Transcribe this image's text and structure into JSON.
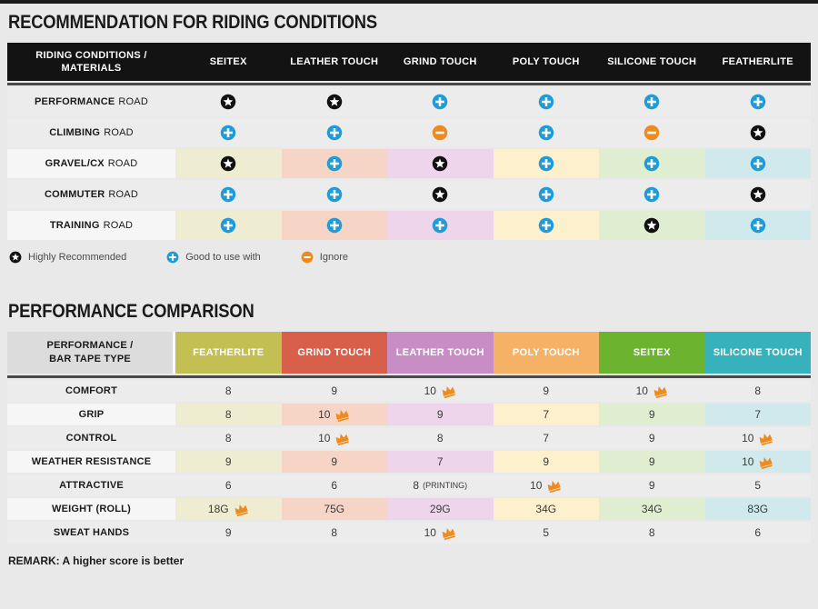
{
  "page": {
    "title_recommendation": "RECOMMENDATION FOR RIDING CONDITIONS",
    "title_comparison": "PERFORMANCE COMPARISON",
    "remark": "REMARK: A higher score is better"
  },
  "colors": {
    "header_bg": "#131313",
    "row_gray": "#ececec",
    "row_light": "#f6f6f6",
    "separator": "#4a4a4c",
    "icon_star": "#111111",
    "icon_plus": "#1f9cd8",
    "icon_minus": "#ee8b1e",
    "crown": "#ee8b1e",
    "pastel_palette": [
      "#eeedd2",
      "#f7d5c6",
      "#eed5eb",
      "#fdf0cc",
      "#dfeed1",
      "#cfe9ec"
    ]
  },
  "recommendation_table": {
    "header_label": "RIDING CONDITIONS /\nMATERIALS",
    "columns": [
      "SEITEX",
      "LEATHER TOUCH",
      "GRIND TOUCH",
      "POLY TOUCH",
      "SILICONE TOUCH",
      "FEATHERLITE"
    ],
    "rows": [
      {
        "strong": "PERFORMANCE",
        "rest": "ROAD",
        "colored": false,
        "cells": [
          "star",
          "star",
          "plus",
          "plus",
          "plus",
          "plus"
        ]
      },
      {
        "strong": "CLIMBING",
        "rest": "ROAD",
        "colored": false,
        "cells": [
          "plus",
          "plus",
          "minus",
          "plus",
          "minus",
          "star"
        ]
      },
      {
        "strong": "GRAVEL/CX",
        "rest": "ROAD",
        "colored": true,
        "cells": [
          "star",
          "plus",
          "star",
          "plus",
          "plus",
          "plus"
        ]
      },
      {
        "strong": "COMMUTER",
        "rest": "ROAD",
        "colored": false,
        "cells": [
          "plus",
          "plus",
          "star",
          "plus",
          "plus",
          "star"
        ]
      },
      {
        "strong": "TRAINING",
        "rest": "ROAD",
        "colored": true,
        "cells": [
          "plus",
          "plus",
          "plus",
          "plus",
          "star",
          "plus"
        ]
      }
    ]
  },
  "legend": [
    {
      "icon": "star",
      "label": "Highly Recommended"
    },
    {
      "icon": "plus",
      "label": "Good to use with"
    },
    {
      "icon": "minus",
      "label": "Ignore"
    }
  ],
  "comparison_table": {
    "header_label": "PERFORMANCE /\nBAR TAPE TYPE",
    "columns": [
      {
        "label": "FEATHERLITE",
        "color": "#c3bf52"
      },
      {
        "label": "GRIND TOUCH",
        "color": "#d8604b"
      },
      {
        "label": "LEATHER TOUCH",
        "color": "#c98dc6"
      },
      {
        "label": "POLY TOUCH",
        "color": "#f5b267"
      },
      {
        "label": "SEITEX",
        "color": "#6cb32f"
      },
      {
        "label": "SILICONE TOUCH",
        "color": "#37b2bc"
      }
    ],
    "rows": [
      {
        "label": "COMFORT",
        "colored": false,
        "cells": [
          {
            "v": "8"
          },
          {
            "v": "9"
          },
          {
            "v": "10",
            "crown": true
          },
          {
            "v": "9"
          },
          {
            "v": "10",
            "crown": true
          },
          {
            "v": "8"
          }
        ]
      },
      {
        "label": "GRIP",
        "colored": true,
        "cells": [
          {
            "v": "8"
          },
          {
            "v": "10",
            "crown": true
          },
          {
            "v": "9"
          },
          {
            "v": "7"
          },
          {
            "v": "9"
          },
          {
            "v": "7"
          }
        ]
      },
      {
        "label": "CONTROL",
        "colored": false,
        "cells": [
          {
            "v": "8"
          },
          {
            "v": "10",
            "crown": true
          },
          {
            "v": "8"
          },
          {
            "v": "7"
          },
          {
            "v": "9"
          },
          {
            "v": "10",
            "crown": true
          }
        ]
      },
      {
        "label": "WEATHER RESISTANCE",
        "colored": true,
        "cells": [
          {
            "v": "9"
          },
          {
            "v": "9"
          },
          {
            "v": "7"
          },
          {
            "v": "9"
          },
          {
            "v": "9"
          },
          {
            "v": "10",
            "crown": true
          }
        ]
      },
      {
        "label": "ATTRACTIVE",
        "colored": false,
        "cells": [
          {
            "v": "6"
          },
          {
            "v": "6"
          },
          {
            "v": "8",
            "suffix": "(PRINTING)"
          },
          {
            "v": "10",
            "crown": true
          },
          {
            "v": "9"
          },
          {
            "v": "5"
          }
        ]
      },
      {
        "label": "WEIGHT (ROLL)",
        "colored": true,
        "cells": [
          {
            "v": "18G",
            "crown": true
          },
          {
            "v": "75G"
          },
          {
            "v": "29G"
          },
          {
            "v": "34G"
          },
          {
            "v": "34G"
          },
          {
            "v": "83G"
          }
        ]
      },
      {
        "label": "SWEAT HANDS",
        "colored": false,
        "cells": [
          {
            "v": "9"
          },
          {
            "v": "8"
          },
          {
            "v": "10",
            "crown": true
          },
          {
            "v": "5"
          },
          {
            "v": "8"
          },
          {
            "v": "6"
          }
        ]
      }
    ]
  }
}
